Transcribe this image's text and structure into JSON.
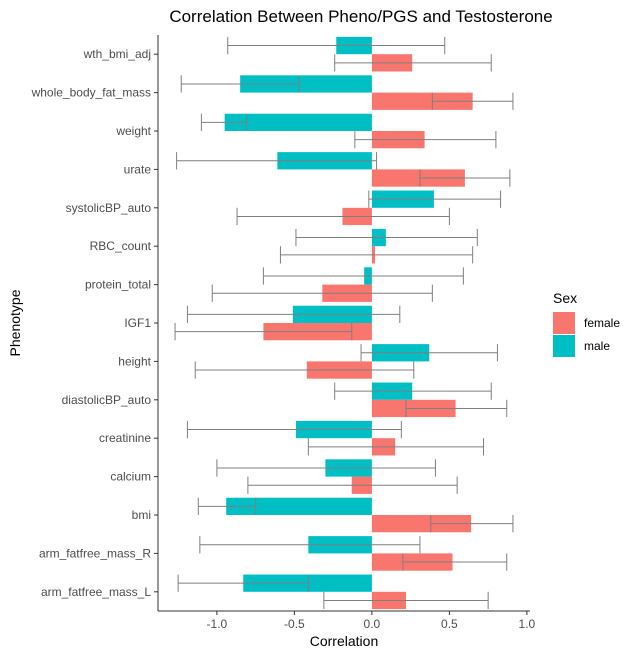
{
  "chart_data": {
    "type": "bar",
    "orientation": "horizontal",
    "title": "Correlation Between Pheno/PGS and Testosterone",
    "xlabel": "Correlation",
    "ylabel": "Phenotype",
    "xlim": [
      -1.38,
      1.02
    ],
    "xticks": [
      -1.0,
      -0.5,
      0.0,
      0.5,
      1.0
    ],
    "xtick_labels": [
      "-1.0",
      "-0.5",
      "0.0",
      "0.5",
      "1.0"
    ],
    "grid": false,
    "legend": {
      "title": "Sex",
      "position": "right"
    },
    "categories": [
      "wth_bmi_adj",
      "whole_body_fat_mass",
      "weight",
      "urate",
      "systolicBP_auto",
      "RBC_count",
      "protein_total",
      "IGF1",
      "height",
      "diastolicBP_auto",
      "creatinine",
      "calcium",
      "bmi",
      "arm_fatfree_mass_R",
      "arm_fatfree_mass_L"
    ],
    "series": [
      {
        "name": "female",
        "color": "#F8766D",
        "values": [
          0.26,
          0.65,
          0.34,
          0.6,
          -0.19,
          0.02,
          -0.32,
          -0.7,
          -0.42,
          0.54,
          0.15,
          -0.13,
          0.64,
          0.52,
          0.22
        ],
        "error_low": [
          -0.24,
          0.39,
          -0.11,
          0.31,
          -0.87,
          -0.59,
          -1.03,
          -1.27,
          -1.14,
          0.22,
          -0.41,
          -0.8,
          0.38,
          0.2,
          -0.31
        ],
        "error_high": [
          0.77,
          0.91,
          0.8,
          0.89,
          0.5,
          0.65,
          0.39,
          -0.13,
          0.27,
          0.87,
          0.72,
          0.55,
          0.91,
          0.87,
          0.75
        ]
      },
      {
        "name": "male",
        "color": "#00BFC4",
        "values": [
          -0.23,
          -0.85,
          -0.95,
          -0.61,
          0.4,
          0.09,
          -0.05,
          -0.51,
          0.37,
          0.26,
          -0.49,
          -0.3,
          -0.94,
          -0.41,
          -0.83
        ],
        "error_low": [
          -0.93,
          -1.23,
          -1.1,
          -1.26,
          -0.02,
          -0.49,
          -0.7,
          -1.19,
          -0.07,
          -0.24,
          -1.19,
          -1.0,
          -1.12,
          -1.11,
          -1.25
        ],
        "error_high": [
          0.47,
          -0.47,
          -0.81,
          0.03,
          0.83,
          0.68,
          0.59,
          0.18,
          0.81,
          0.77,
          0.19,
          0.41,
          -0.75,
          0.31,
          -0.41
        ]
      }
    ]
  }
}
